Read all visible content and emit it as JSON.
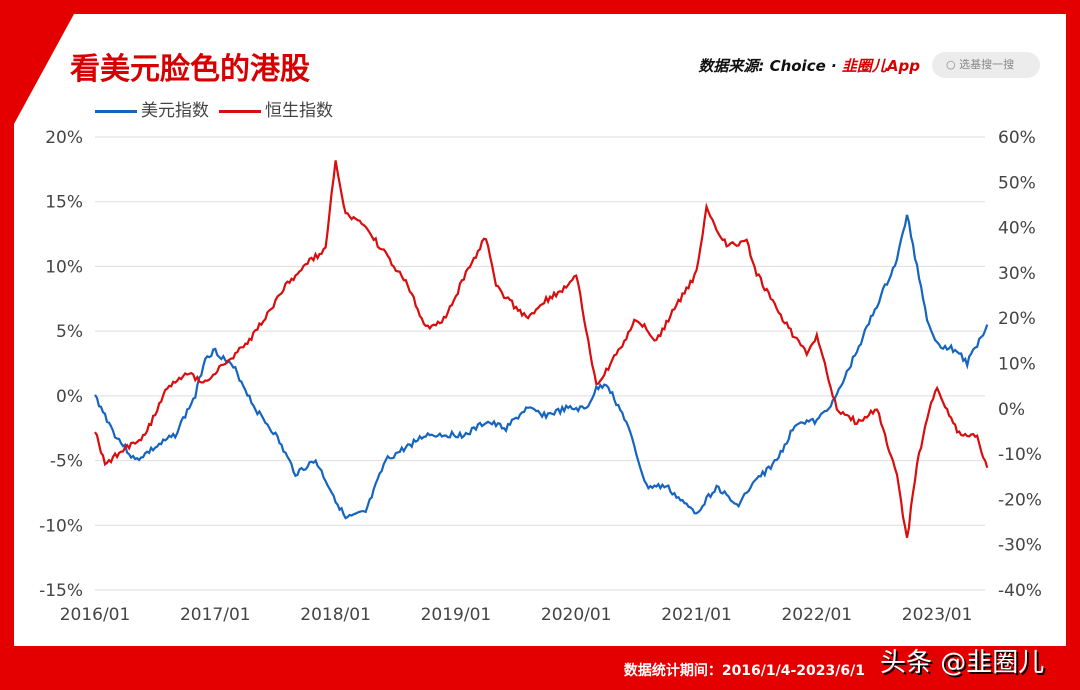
{
  "title": "看美元脸色的港股",
  "source": {
    "label": "数据来源: Choice · ",
    "brand": "韭圈儿App"
  },
  "search": {
    "placeholder": "选基搜一搜",
    "icon": "search-icon"
  },
  "footer": "数据统计期间：2016/1/4-2023/6/1",
  "watermark": "头条 @韭圈儿",
  "chart_data": {
    "type": "line",
    "xlabel": "",
    "ylabel": "",
    "x_ticks": [
      "2016/01",
      "2017/01",
      "2018/01",
      "2019/01",
      "2020/01",
      "2021/01",
      "2022/01",
      "2023/01"
    ],
    "y_left": {
      "range": [
        -15,
        20
      ],
      "ticks": [
        "20%",
        "15%",
        "10%",
        "5%",
        "0%",
        "-5%",
        "-10%",
        "-15%"
      ]
    },
    "y_right": {
      "range": [
        -40,
        60
      ],
      "ticks": [
        "60%",
        "50%",
        "40%",
        "30%",
        "20%",
        "10%",
        "0%",
        "-10%",
        "-20%",
        "-30%",
        "-40%"
      ]
    },
    "grid": true,
    "legend": "top-left",
    "series": [
      {
        "name": "美元指数",
        "axis": "left",
        "color": "#1565c0",
        "points": [
          [
            "2016/01",
            0
          ],
          [
            "2016/03",
            -3
          ],
          [
            "2016/05",
            -5
          ],
          [
            "2016/07",
            -4
          ],
          [
            "2016/09",
            -3
          ],
          [
            "2016/11",
            0
          ],
          [
            "2016/12",
            3
          ],
          [
            "2017/01",
            3.5
          ],
          [
            "2017/03",
            2
          ],
          [
            "2017/05",
            -1
          ],
          [
            "2017/07",
            -3
          ],
          [
            "2017/09",
            -6
          ],
          [
            "2017/11",
            -5
          ],
          [
            "2018/01",
            -8
          ],
          [
            "2018/02",
            -9.5
          ],
          [
            "2018/04",
            -9
          ],
          [
            "2018/06",
            -5
          ],
          [
            "2018/08",
            -4
          ],
          [
            "2018/10",
            -3
          ],
          [
            "2018/12",
            -3
          ],
          [
            "2019/02",
            -3
          ],
          [
            "2019/04",
            -2
          ],
          [
            "2019/06",
            -2.5
          ],
          [
            "2019/08",
            -1
          ],
          [
            "2019/10",
            -1.5
          ],
          [
            "2019/12",
            -1
          ],
          [
            "2020/02",
            -1
          ],
          [
            "2020/03",
            0.5
          ],
          [
            "2020/04",
            1
          ],
          [
            "2020/06",
            -2
          ],
          [
            "2020/08",
            -7
          ],
          [
            "2020/10",
            -7
          ],
          [
            "2020/12",
            -8.5
          ],
          [
            "2021/01",
            -9
          ],
          [
            "2021/03",
            -7
          ],
          [
            "2021/05",
            -8.5
          ],
          [
            "2021/07",
            -6.5
          ],
          [
            "2021/09",
            -5
          ],
          [
            "2021/11",
            -2
          ],
          [
            "2022/01",
            -2
          ],
          [
            "2022/03",
            0
          ],
          [
            "2022/05",
            3.5
          ],
          [
            "2022/07",
            7
          ],
          [
            "2022/09",
            10.5
          ],
          [
            "2022/10",
            14
          ],
          [
            "2022/11",
            10
          ],
          [
            "2022/12",
            6
          ],
          [
            "2023/01",
            4
          ],
          [
            "2023/03",
            3.5
          ],
          [
            "2023/04",
            2.5
          ],
          [
            "2023/05",
            4
          ],
          [
            "2023/06",
            5.5
          ]
        ]
      },
      {
        "name": "恒生指数",
        "axis": "right",
        "color": "#d90d0d",
        "points": [
          [
            "2016/01",
            -5
          ],
          [
            "2016/02",
            -12
          ],
          [
            "2016/04",
            -9
          ],
          [
            "2016/06",
            -6
          ],
          [
            "2016/08",
            4
          ],
          [
            "2016/10",
            8
          ],
          [
            "2016/12",
            6
          ],
          [
            "2017/02",
            10
          ],
          [
            "2017/04",
            14
          ],
          [
            "2017/06",
            20
          ],
          [
            "2017/08",
            27
          ],
          [
            "2017/10",
            32
          ],
          [
            "2017/12",
            35
          ],
          [
            "2018/01",
            55
          ],
          [
            "2018/02",
            43
          ],
          [
            "2018/04",
            40
          ],
          [
            "2018/06",
            34
          ],
          [
            "2018/08",
            28
          ],
          [
            "2018/10",
            18
          ],
          [
            "2018/12",
            20
          ],
          [
            "2019/02",
            30
          ],
          [
            "2019/04",
            38
          ],
          [
            "2019/05",
            27
          ],
          [
            "2019/08",
            20
          ],
          [
            "2019/10",
            24
          ],
          [
            "2019/12",
            27
          ],
          [
            "2020/01",
            30
          ],
          [
            "2020/03",
            5
          ],
          [
            "2020/05",
            12
          ],
          [
            "2020/07",
            20
          ],
          [
            "2020/09",
            15
          ],
          [
            "2020/11",
            23
          ],
          [
            "2021/01",
            30
          ],
          [
            "2021/02",
            44
          ],
          [
            "2021/04",
            36
          ],
          [
            "2021/06",
            37
          ],
          [
            "2021/07",
            30
          ],
          [
            "2021/09",
            22
          ],
          [
            "2021/11",
            15
          ],
          [
            "2021/12",
            12
          ],
          [
            "2022/01",
            16
          ],
          [
            "2022/03",
            0
          ],
          [
            "2022/05",
            -3
          ],
          [
            "2022/07",
            0
          ],
          [
            "2022/09",
            -15
          ],
          [
            "2022/10",
            -29
          ],
          [
            "2022/11",
            -12
          ],
          [
            "2022/12",
            -2
          ],
          [
            "2023/01",
            5
          ],
          [
            "2023/03",
            -5
          ],
          [
            "2023/05",
            -6
          ],
          [
            "2023/06",
            -13
          ]
        ]
      }
    ]
  }
}
